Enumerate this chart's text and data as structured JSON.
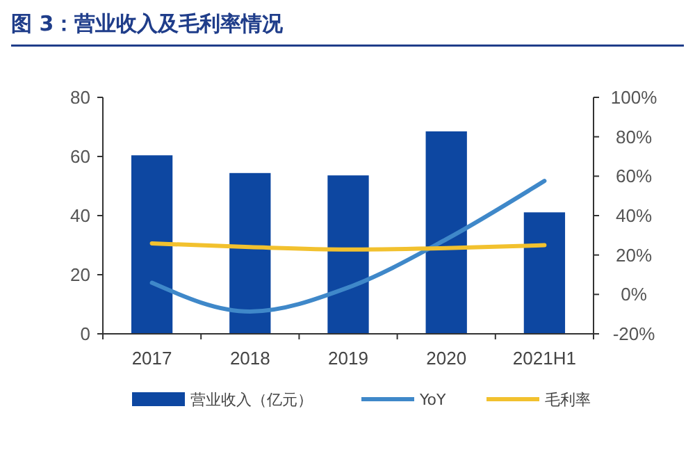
{
  "chart_data": {
    "type": "bar",
    "title": "图 3：营业收入及毛利率情况",
    "categories": [
      "2017",
      "2018",
      "2019",
      "2020",
      "2021H1"
    ],
    "series": [
      {
        "name": "营业收入（亿元）",
        "color": "#0d47a1",
        "values": [
          60.4,
          54.4,
          53.6,
          68.5,
          41.1
        ]
      },
      {
        "name": "YoY",
        "type": "line",
        "axis": "y2",
        "color": "#3f88c9",
        "values": [
          5.9,
          -8.7,
          3.5,
          28,
          57.6
        ]
      },
      {
        "name": "毛利率",
        "type": "line",
        "axis": "y2",
        "color": "#f2c12e",
        "values": [
          25.9,
          24,
          22.8,
          23.5,
          25
        ]
      }
    ],
    "ylim": [
      0,
      80
    ],
    "yticks": [
      0,
      20,
      40,
      60,
      80
    ],
    "y2lim": [
      -20,
      100
    ],
    "y2ticks": [
      {
        "value": -20,
        "label": "-20%"
      },
      {
        "value": 0,
        "label": "0%"
      },
      {
        "value": 20,
        "label": "20%"
      },
      {
        "value": 40,
        "label": "40%"
      },
      {
        "value": 60,
        "label": "60%"
      },
      {
        "value": 80,
        "label": "80%"
      },
      {
        "value": 100,
        "label": "100%"
      }
    ],
    "legend": "bottom",
    "grid": false,
    "marker": "none",
    "line_style": "solid"
  }
}
